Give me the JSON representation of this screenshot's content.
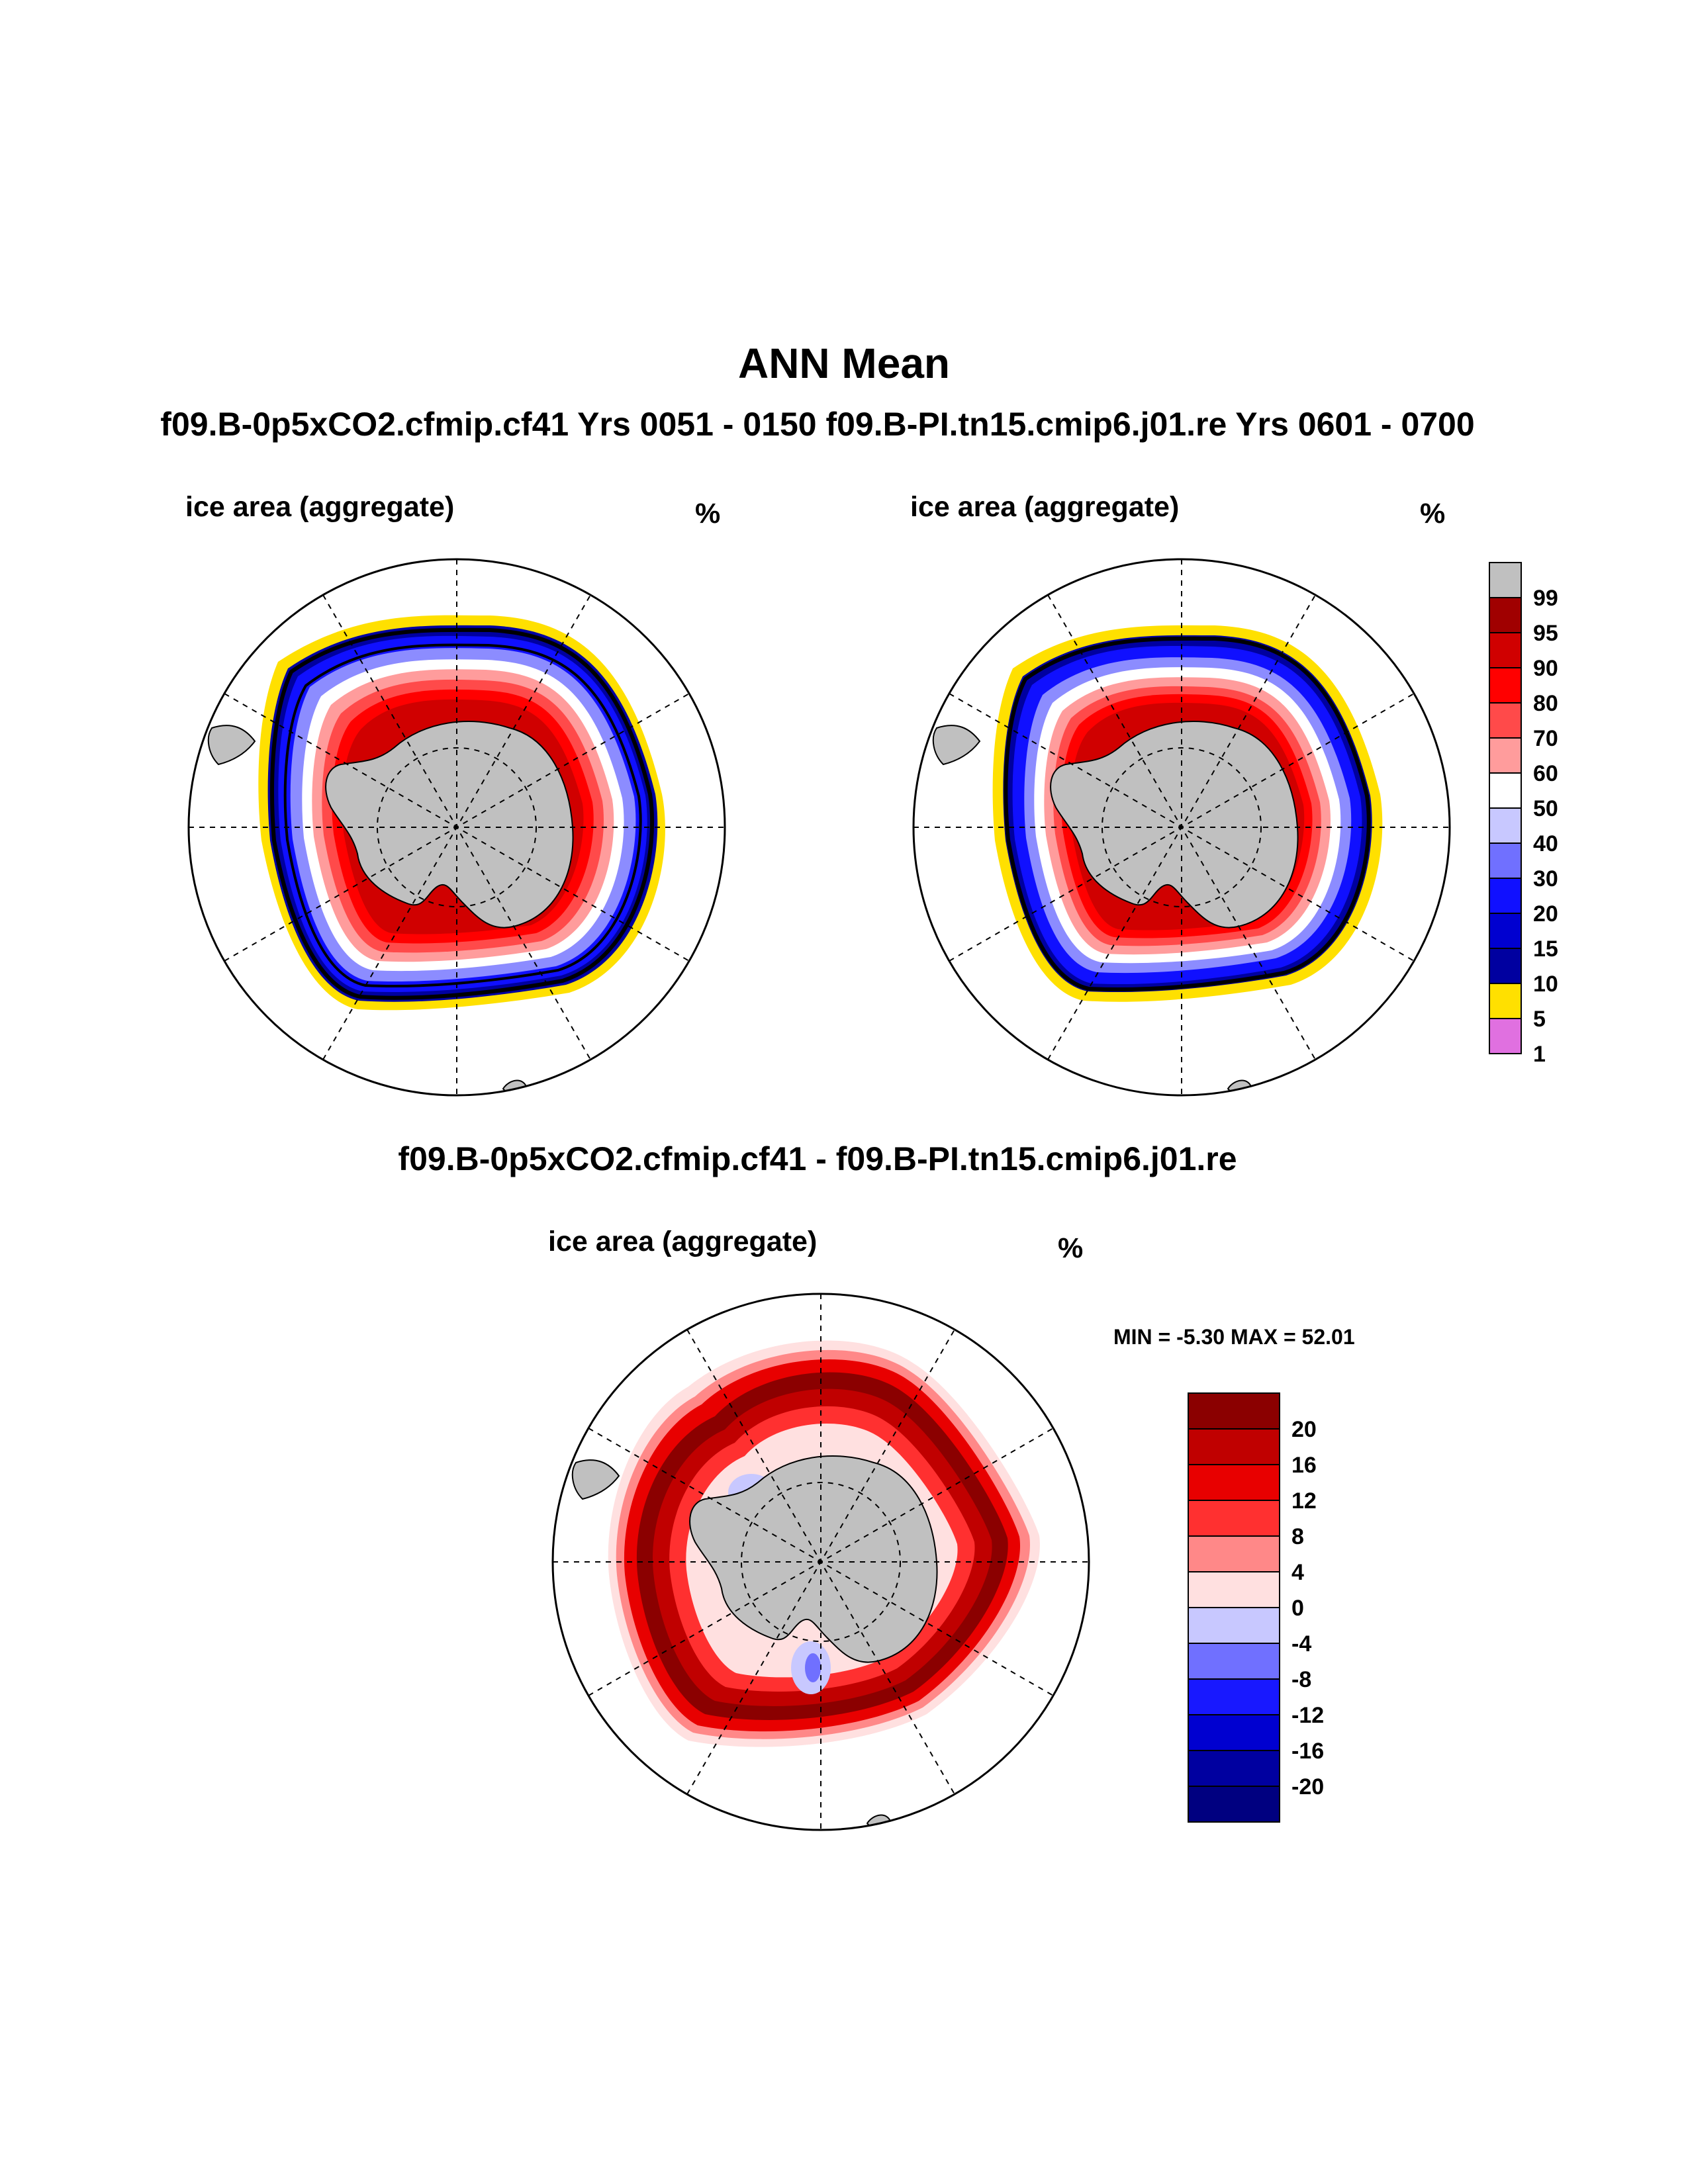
{
  "title": "ANN Mean",
  "subtitle": "f09.B-0p5xCO2.cfmip.cf41  Yrs 0051 - 0150  f09.B-PI.tn15.cmip6.j01.re  Yrs 0601 - 0700",
  "difference_title": "f09.B-0p5xCO2.cfmip.cf41 - f09.B-PI.tn15.cmip6.j01.re",
  "panels": [
    {
      "variable": "ice area  (aggregate)",
      "units": "%"
    },
    {
      "variable": "ice area  (aggregate)",
      "units": "%"
    },
    {
      "variable": "ice area  (aggregate)",
      "units": "%",
      "min_max": "MIN =  -5.30 MAX =  52.01"
    }
  ],
  "colorbar_top": {
    "labels": [
      "99",
      "95",
      "90",
      "80",
      "70",
      "60",
      "50",
      "40",
      "30",
      "20",
      "15",
      "10",
      "5",
      "1"
    ],
    "colors": [
      "#c0c0c0",
      "#a00000",
      "#d00000",
      "#ff0000",
      "#ff4a4a",
      "#ff9c9c",
      "#ffffff",
      "#c8c8ff",
      "#7070ff",
      "#1010ff",
      "#0000d0",
      "#0000a0",
      "#ffe000",
      "#e070e0"
    ]
  },
  "colorbar_diff": {
    "labels": [
      "20",
      "16",
      "12",
      "8",
      "4",
      "0",
      "-4",
      "-8",
      "-12",
      "-16",
      "-20"
    ],
    "colors": [
      "#8b0000",
      "#c00000",
      "#e80000",
      "#ff3030",
      "#ff8888",
      "#ffe0e0",
      "#c8c8ff",
      "#7070ff",
      "#1818ff",
      "#0000d0",
      "#0000a0",
      "#000080"
    ]
  }
}
